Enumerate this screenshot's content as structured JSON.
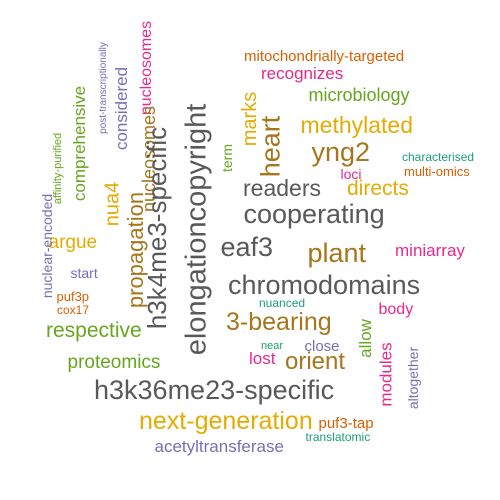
{
  "palette": {
    "orange": "#d95f02",
    "gold": "#e6ab02",
    "gray": "#595959",
    "green": "#66a61e",
    "magenta": "#e7298a",
    "brown": "#a6761d",
    "purple": "#7570b3",
    "teal": "#1b9e77"
  },
  "words": [
    {
      "id": "mitochondrially-targeted",
      "text": "mitochondrially-targeted",
      "color": "orange",
      "orientation": "horizontal"
    },
    {
      "id": "recognizes",
      "text": "recognizes",
      "color": "magenta",
      "orientation": "horizontal"
    },
    {
      "id": "microbiology",
      "text": "microbiology",
      "color": "green",
      "orientation": "horizontal"
    },
    {
      "id": "methylated",
      "text": "methylated",
      "color": "gold",
      "orientation": "horizontal"
    },
    {
      "id": "yng2",
      "text": "yng2",
      "color": "brown",
      "orientation": "horizontal"
    },
    {
      "id": "characterised",
      "text": "characterised",
      "color": "teal",
      "orientation": "horizontal"
    },
    {
      "id": "multi-omics",
      "text": "multi-omics",
      "color": "orange",
      "orientation": "horizontal"
    },
    {
      "id": "loci",
      "text": "loci",
      "color": "magenta",
      "orientation": "horizontal"
    },
    {
      "id": "readers",
      "text": "readers",
      "color": "gray",
      "orientation": "horizontal"
    },
    {
      "id": "directs",
      "text": "directs",
      "color": "gold",
      "orientation": "horizontal"
    },
    {
      "id": "cooperating",
      "text": "cooperating",
      "color": "gray",
      "orientation": "horizontal"
    },
    {
      "id": "eaf3",
      "text": "eaf3",
      "color": "gray",
      "orientation": "horizontal"
    },
    {
      "id": "plant",
      "text": "plant",
      "color": "brown",
      "orientation": "horizontal"
    },
    {
      "id": "miniarray",
      "text": "miniarray",
      "color": "magenta",
      "orientation": "horizontal"
    },
    {
      "id": "chromodomains",
      "text": "chromodomains",
      "color": "gray",
      "orientation": "horizontal"
    },
    {
      "id": "argue",
      "text": "argue",
      "color": "gold",
      "orientation": "horizontal"
    },
    {
      "id": "start",
      "text": "start",
      "color": "purple",
      "orientation": "horizontal"
    },
    {
      "id": "puf3p",
      "text": "puf3p",
      "color": "orange",
      "orientation": "horizontal"
    },
    {
      "id": "cox17",
      "text": "cox17",
      "color": "orange",
      "orientation": "horizontal"
    },
    {
      "id": "nuanced",
      "text": "nuanced",
      "color": "teal",
      "orientation": "horizontal"
    },
    {
      "id": "body",
      "text": "body",
      "color": "magenta",
      "orientation": "horizontal"
    },
    {
      "id": "respective",
      "text": "respective",
      "color": "green",
      "orientation": "horizontal"
    },
    {
      "id": "3-bearing",
      "text": "3-bearing",
      "color": "brown",
      "orientation": "horizontal"
    },
    {
      "id": "near",
      "text": "near",
      "color": "teal",
      "orientation": "horizontal"
    },
    {
      "id": "close",
      "text": "close",
      "color": "purple",
      "orientation": "horizontal"
    },
    {
      "id": "proteomics",
      "text": "proteomics",
      "color": "green",
      "orientation": "horizontal"
    },
    {
      "id": "lost",
      "text": "lost",
      "color": "magenta",
      "orientation": "horizontal"
    },
    {
      "id": "orient",
      "text": "orient",
      "color": "brown",
      "orientation": "horizontal"
    },
    {
      "id": "h3k36me23-specific",
      "text": "h3k36me23-specific",
      "color": "gray",
      "orientation": "horizontal"
    },
    {
      "id": "next-generation",
      "text": "next-generation",
      "color": "gold",
      "orientation": "horizontal"
    },
    {
      "id": "puf3-tap",
      "text": "puf3-tap",
      "color": "orange",
      "orientation": "horizontal"
    },
    {
      "id": "translatomic",
      "text": "translatomic",
      "color": "teal",
      "orientation": "horizontal"
    },
    {
      "id": "acetyltransferase",
      "text": "acetyltransferase",
      "color": "purple",
      "orientation": "horizontal"
    },
    {
      "id": "post-transcriptionally",
      "text": "post-transcriptionally",
      "color": "purple",
      "orientation": "vertical"
    },
    {
      "id": "nucleosomes",
      "text": "nucleosomes",
      "color": "magenta",
      "orientation": "vertical"
    },
    {
      "id": "considered",
      "text": "considered",
      "color": "purple",
      "orientation": "vertical"
    },
    {
      "id": "comprehensive",
      "text": "comprehensive",
      "color": "green",
      "orientation": "vertical"
    },
    {
      "id": "nucleosomes-2",
      "text": "nucleosomes",
      "color": "brown",
      "orientation": "vertical"
    },
    {
      "id": "nuclear-encoded",
      "text": "nuclear-encoded",
      "color": "purple",
      "orientation": "vertical"
    },
    {
      "id": "affinity-purified",
      "text": "affinity-purified",
      "color": "green",
      "orientation": "vertical"
    },
    {
      "id": "nua4",
      "text": "nua4",
      "color": "gold",
      "orientation": "vertical"
    },
    {
      "id": "propagation",
      "text": "propagation",
      "color": "brown",
      "orientation": "vertical"
    },
    {
      "id": "h3k4me3-specific",
      "text": "h3k4me3-specific",
      "color": "gray",
      "orientation": "vertical"
    },
    {
      "id": "elongationcopyright",
      "text": "elongationcopyright",
      "color": "gray",
      "orientation": "vertical"
    },
    {
      "id": "term",
      "text": "term",
      "color": "green",
      "orientation": "vertical"
    },
    {
      "id": "marks",
      "text": "marks",
      "color": "gold",
      "orientation": "vertical"
    },
    {
      "id": "heart",
      "text": "heart",
      "color": "brown",
      "orientation": "vertical"
    },
    {
      "id": "allow",
      "text": "allow",
      "color": "green",
      "orientation": "vertical"
    },
    {
      "id": "modules",
      "text": "modules",
      "color": "magenta",
      "orientation": "vertical"
    },
    {
      "id": "altogether",
      "text": "altogether",
      "color": "purple",
      "orientation": "vertical"
    }
  ]
}
